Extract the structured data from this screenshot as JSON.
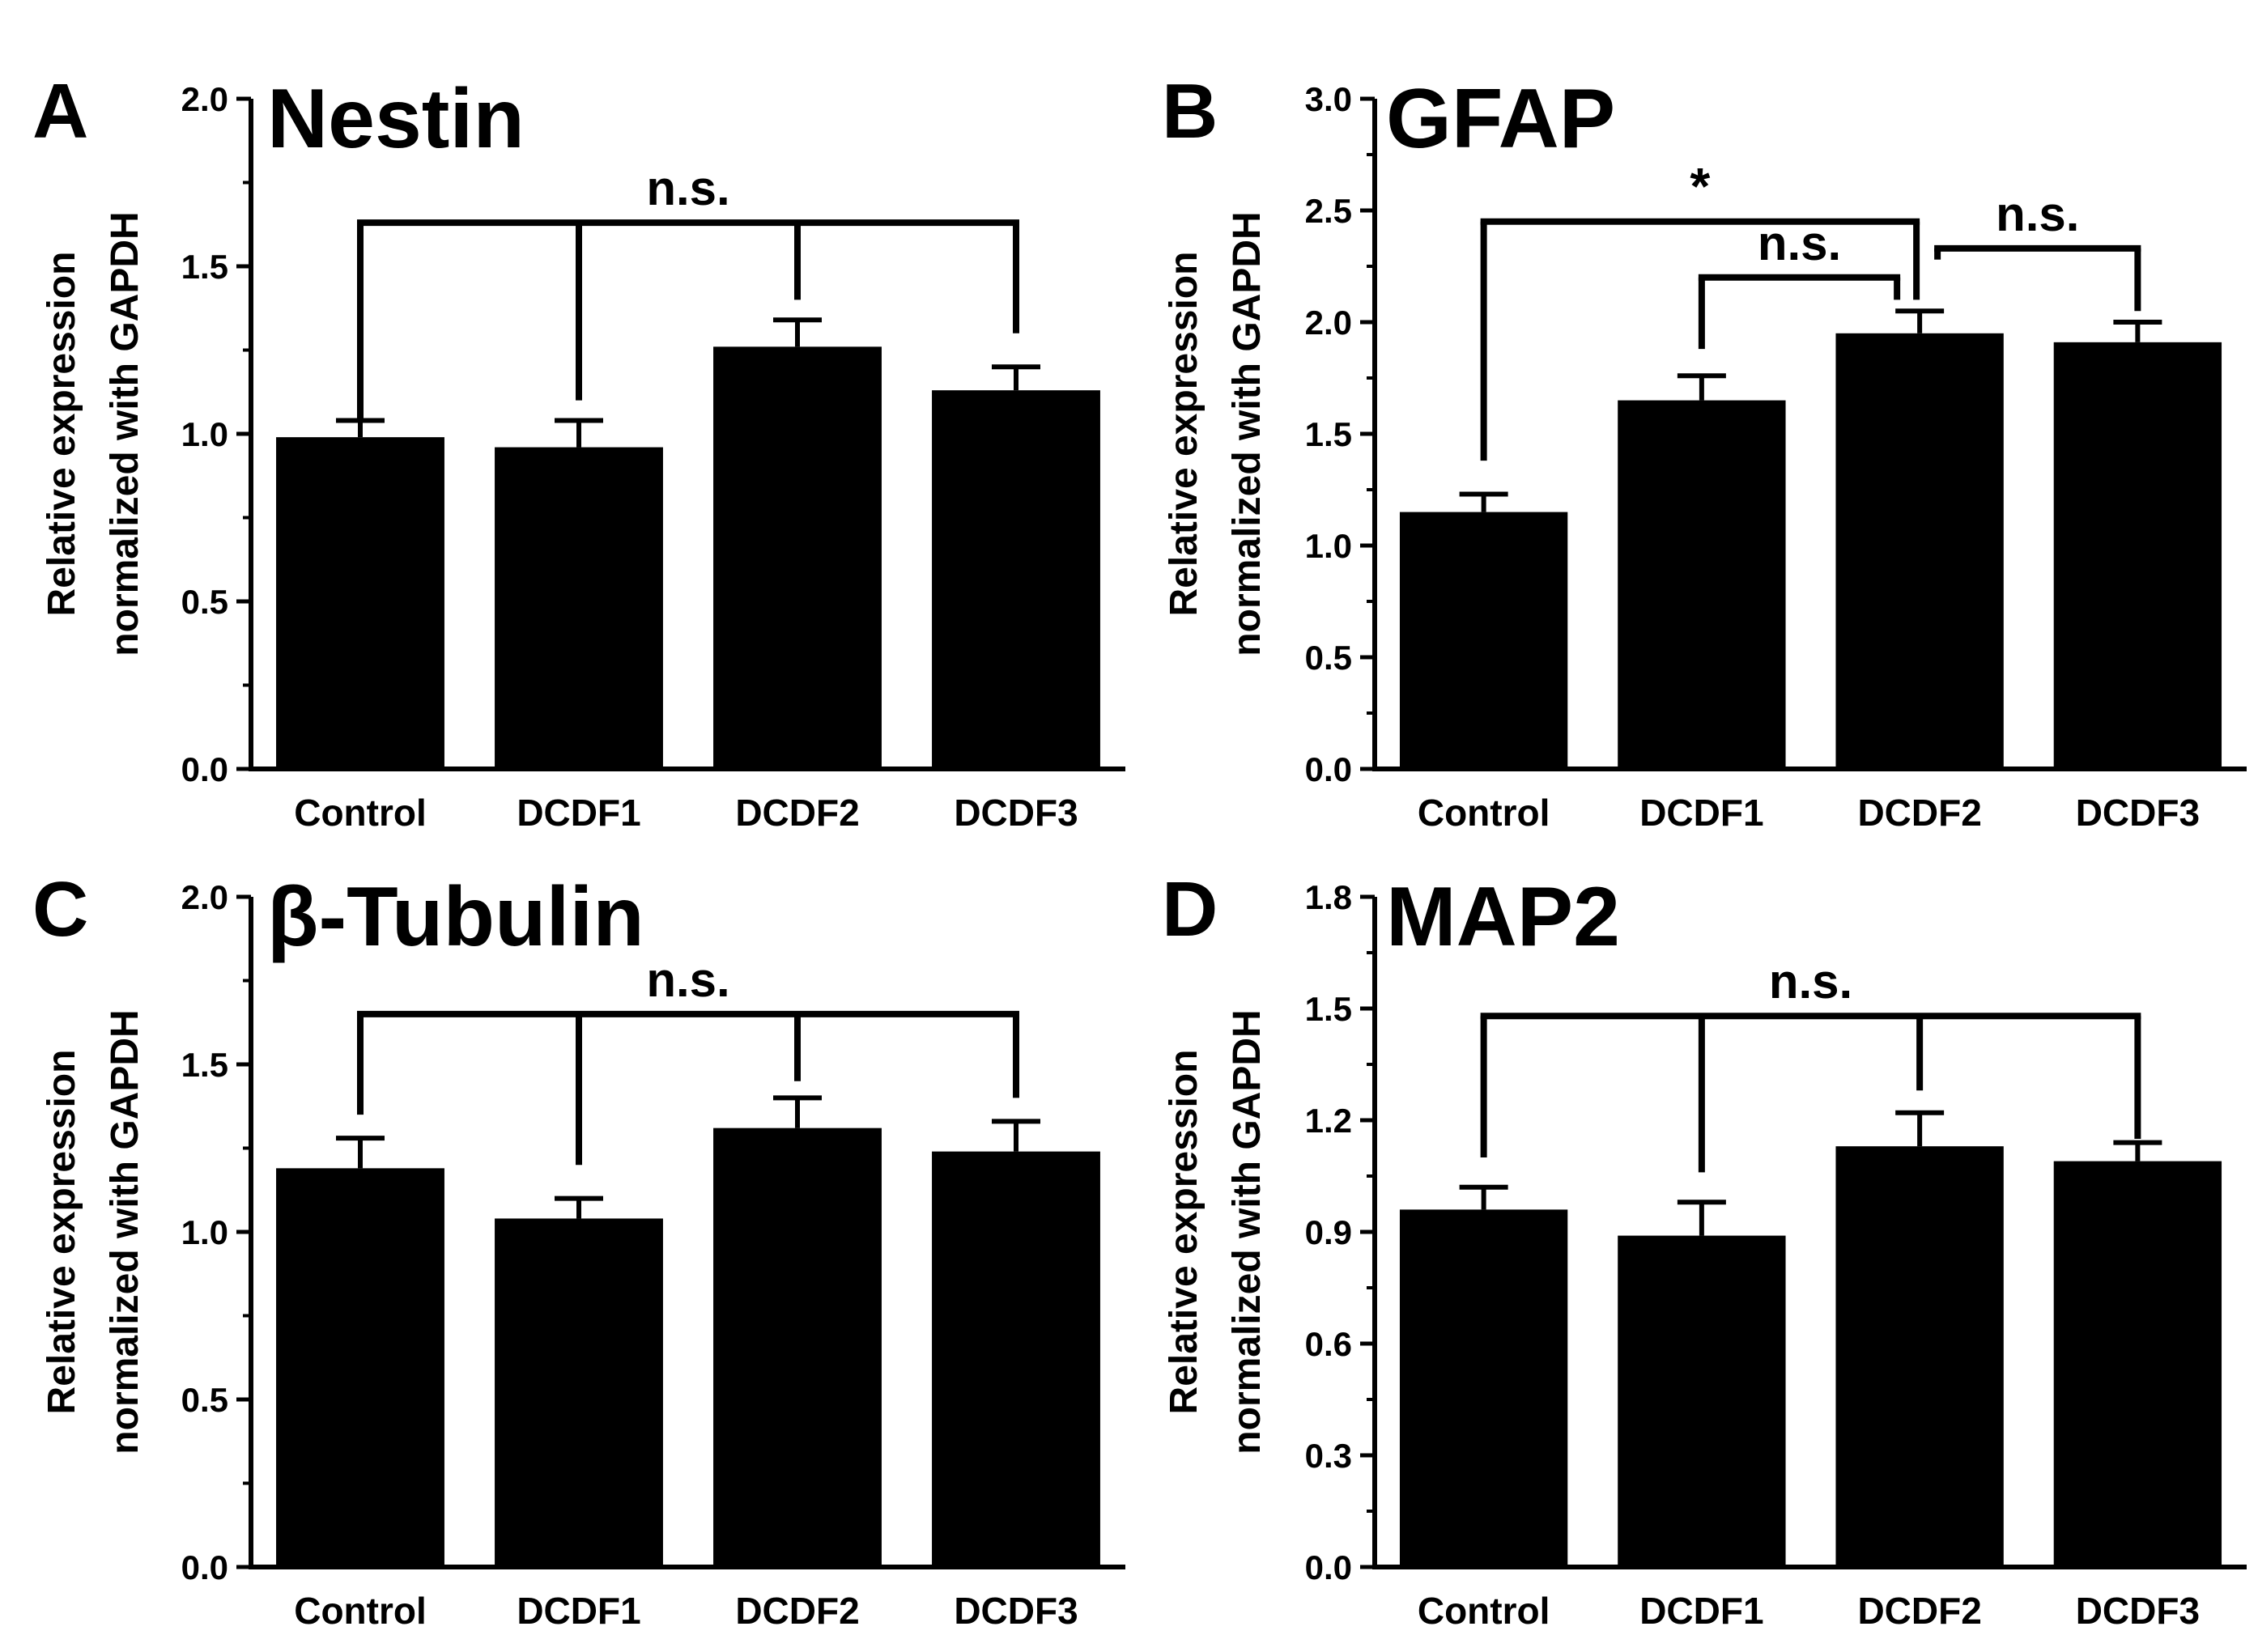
{
  "figure": {
    "colors": {
      "bar": "#000000",
      "axis": "#000000",
      "background": "#ffffff"
    }
  },
  "chart_data": [
    {
      "panel": "A",
      "type": "bar",
      "title": "Nestin",
      "ylabel_line1": "Relative expression",
      "ylabel_line2": "normalized with GAPDH",
      "xlabel": "",
      "categories": [
        "Control",
        "DCDF1",
        "DCDF2",
        "DCDF3"
      ],
      "values": [
        0.99,
        0.96,
        1.26,
        1.13
      ],
      "errors": [
        0.05,
        0.08,
        0.08,
        0.07
      ],
      "ylim": [
        0,
        2.0
      ],
      "ytick_step": 0.5,
      "tick_labels": [
        "0.0",
        "0.5",
        "1.0",
        "1.5",
        "2.0"
      ],
      "annotations": [
        {
          "label": "n.s.",
          "type": "multi",
          "indices": [
            0,
            1,
            2,
            3
          ],
          "y": 1.63,
          "drop_to": [
            1.04,
            1.1,
            1.4,
            1.3
          ]
        }
      ]
    },
    {
      "panel": "B",
      "type": "bar",
      "title": "GFAP",
      "ylabel_line1": "Relative expression",
      "ylabel_line2": "normalized with GAPDH",
      "xlabel": "",
      "categories": [
        "Control",
        "DCDF1",
        "DCDF2",
        "DCDF3"
      ],
      "values": [
        1.15,
        1.65,
        1.95,
        1.91
      ],
      "errors": [
        0.08,
        0.11,
        0.1,
        0.09
      ],
      "ylim": [
        0,
        3.0
      ],
      "ytick_step": 0.5,
      "tick_labels": [
        "0.0",
        "0.5",
        "1.0",
        "1.5",
        "2.0",
        "2.5",
        "3.0"
      ],
      "annotations": [
        {
          "label": "*",
          "type": "pair",
          "indices": [
            0,
            2
          ],
          "y": 2.45,
          "drop_to": [
            1.38,
            2.1
          ]
        },
        {
          "label": "n.s.",
          "type": "pair",
          "indices": [
            1,
            2
          ],
          "y": 2.2,
          "drop_to": [
            1.88,
            2.1
          ]
        },
        {
          "label": "n.s.",
          "type": "pair",
          "indices": [
            2,
            3
          ],
          "y": 2.33,
          "drop_to": [
            2.28,
            2.05
          ]
        }
      ]
    },
    {
      "panel": "C",
      "type": "bar",
      "title": "β-Tubulin",
      "ylabel_line1": "Relative expression",
      "ylabel_line2": "normalized with GAPDH",
      "xlabel": "",
      "categories": [
        "Control",
        "DCDF1",
        "DCDF2",
        "DCDF3"
      ],
      "values": [
        1.19,
        1.04,
        1.31,
        1.24
      ],
      "errors": [
        0.09,
        0.06,
        0.09,
        0.09
      ],
      "ylim": [
        0,
        2.0
      ],
      "ytick_step": 0.5,
      "tick_labels": [
        "0.0",
        "0.5",
        "1.0",
        "1.5",
        "2.0"
      ],
      "annotations": [
        {
          "label": "n.s.",
          "type": "multi",
          "indices": [
            0,
            1,
            2,
            3
          ],
          "y": 1.65,
          "drop_to": [
            1.35,
            1.2,
            1.45,
            1.4
          ]
        }
      ]
    },
    {
      "panel": "D",
      "type": "bar",
      "title": "MAP2",
      "ylabel_line1": "Relative expression",
      "ylabel_line2": "normalized with GAPDH",
      "xlabel": "",
      "categories": [
        "Control",
        "DCDF1",
        "DCDF2",
        "DCDF3"
      ],
      "values": [
        0.96,
        0.89,
        1.13,
        1.09
      ],
      "errors": [
        0.06,
        0.09,
        0.09,
        0.05
      ],
      "ylim": [
        0,
        1.8
      ],
      "ytick_step": 0.3,
      "tick_labels": [
        "0.0",
        "0.3",
        "0.6",
        "0.9",
        "1.2",
        "1.5",
        "1.8"
      ],
      "annotations": [
        {
          "label": "n.s.",
          "type": "multi",
          "indices": [
            0,
            1,
            2,
            3
          ],
          "y": 1.48,
          "drop_to": [
            1.1,
            1.06,
            1.28,
            1.15
          ]
        }
      ]
    }
  ]
}
